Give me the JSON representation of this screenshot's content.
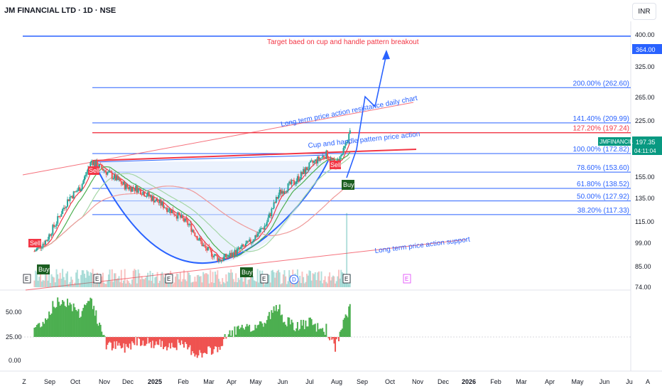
{
  "header": {
    "title": "JM FINANCIAL LTD · 1D · NSE",
    "currency": "INR"
  },
  "price_axis": {
    "ticks": [
      "400.00",
      "325.00",
      "265.00",
      "225.00",
      "197.35",
      "155.00",
      "135.00",
      "115.00",
      "99.00",
      "85.00",
      "74.00"
    ],
    "target_label": "364.00",
    "last_symbol": "JMFINANCIL",
    "last_price": "197.35",
    "countdown": "04:11:04"
  },
  "time_axis": {
    "ticks": [
      "Z",
      "Sep",
      "Oct",
      "Nov",
      "Dec",
      "2025",
      "Feb",
      "Mar",
      "Apr",
      "May",
      "Jun",
      "Jul",
      "Aug",
      "Sep",
      "Oct",
      "Nov",
      "Dec",
      "2026",
      "Feb",
      "Mar",
      "Apr",
      "May",
      "Jun",
      "Ju",
      "A"
    ]
  },
  "fib_levels": [
    {
      "label": "200.00% (262.60)",
      "price": 262.6
    },
    {
      "label": "141.40% (209.99)",
      "price": 209.99
    },
    {
      "label": "127.20% (197.24)",
      "price": 197.24
    },
    {
      "label": "100.00% (172.82)",
      "price": 172.82
    },
    {
      "label": "78.60% (153.60)",
      "price": 153.6
    },
    {
      "label": "61.80% (138.52)",
      "price": 138.52
    },
    {
      "label": "50.00% (127.92)",
      "price": 127.92
    },
    {
      "label": "38.20% (117.33)",
      "price": 117.33
    }
  ],
  "annotations": {
    "target": "Target baed on cup and handle pattern breakout",
    "resistance": "Long term price action resistance daily chart",
    "cup": "Cup and handle pattern price action",
    "support": "Long term price action support"
  },
  "signals": {
    "buy": "Buy",
    "sell": "Sell",
    "earnings": "E",
    "dividend": "D"
  },
  "oscillator": {
    "ticks": [
      "50.00",
      "25.00",
      "0.00"
    ]
  },
  "colors": {
    "up": "#26a69a",
    "down": "#ef5350",
    "fib": "#2962ff",
    "trend": "#f23645",
    "osc_up": "#4caf50",
    "osc_down": "#ef5350"
  },
  "chart_data": {
    "type": "candlestick",
    "title": "JM FINANCIAL LTD · 1D · NSE",
    "y_scale": "log",
    "ylim": [
      74,
      400
    ],
    "x_range": [
      "2024-08",
      "2026-08"
    ],
    "close_series_approx": [
      {
        "date": "2024-08-05",
        "close": 93
      },
      {
        "date": "2024-08-20",
        "close": 100
      },
      {
        "date": "2024-09-01",
        "close": 112
      },
      {
        "date": "2024-09-16",
        "close": 130
      },
      {
        "date": "2024-10-01",
        "close": 140
      },
      {
        "date": "2024-10-14",
        "close": 165
      },
      {
        "date": "2024-10-25",
        "close": 158
      },
      {
        "date": "2024-11-08",
        "close": 150
      },
      {
        "date": "2024-11-25",
        "close": 140
      },
      {
        "date": "2024-12-10",
        "close": 138
      },
      {
        "date": "2025-01-01",
        "close": 128
      },
      {
        "date": "2025-01-20",
        "close": 120
      },
      {
        "date": "2025-02-10",
        "close": 110
      },
      {
        "date": "2025-03-01",
        "close": 95
      },
      {
        "date": "2025-03-20",
        "close": 88
      },
      {
        "date": "2025-04-07",
        "close": 92
      },
      {
        "date": "2025-04-25",
        "close": 98
      },
      {
        "date": "2025-05-15",
        "close": 110
      },
      {
        "date": "2025-06-01",
        "close": 135
      },
      {
        "date": "2025-06-20",
        "close": 145
      },
      {
        "date": "2025-07-10",
        "close": 162
      },
      {
        "date": "2025-07-28",
        "close": 172
      },
      {
        "date": "2025-08-08",
        "close": 160
      },
      {
        "date": "2025-08-18",
        "close": 175
      },
      {
        "date": "2025-08-26",
        "close": 197.35
      }
    ],
    "last_price": 197.35,
    "target_price": 364.0
  }
}
